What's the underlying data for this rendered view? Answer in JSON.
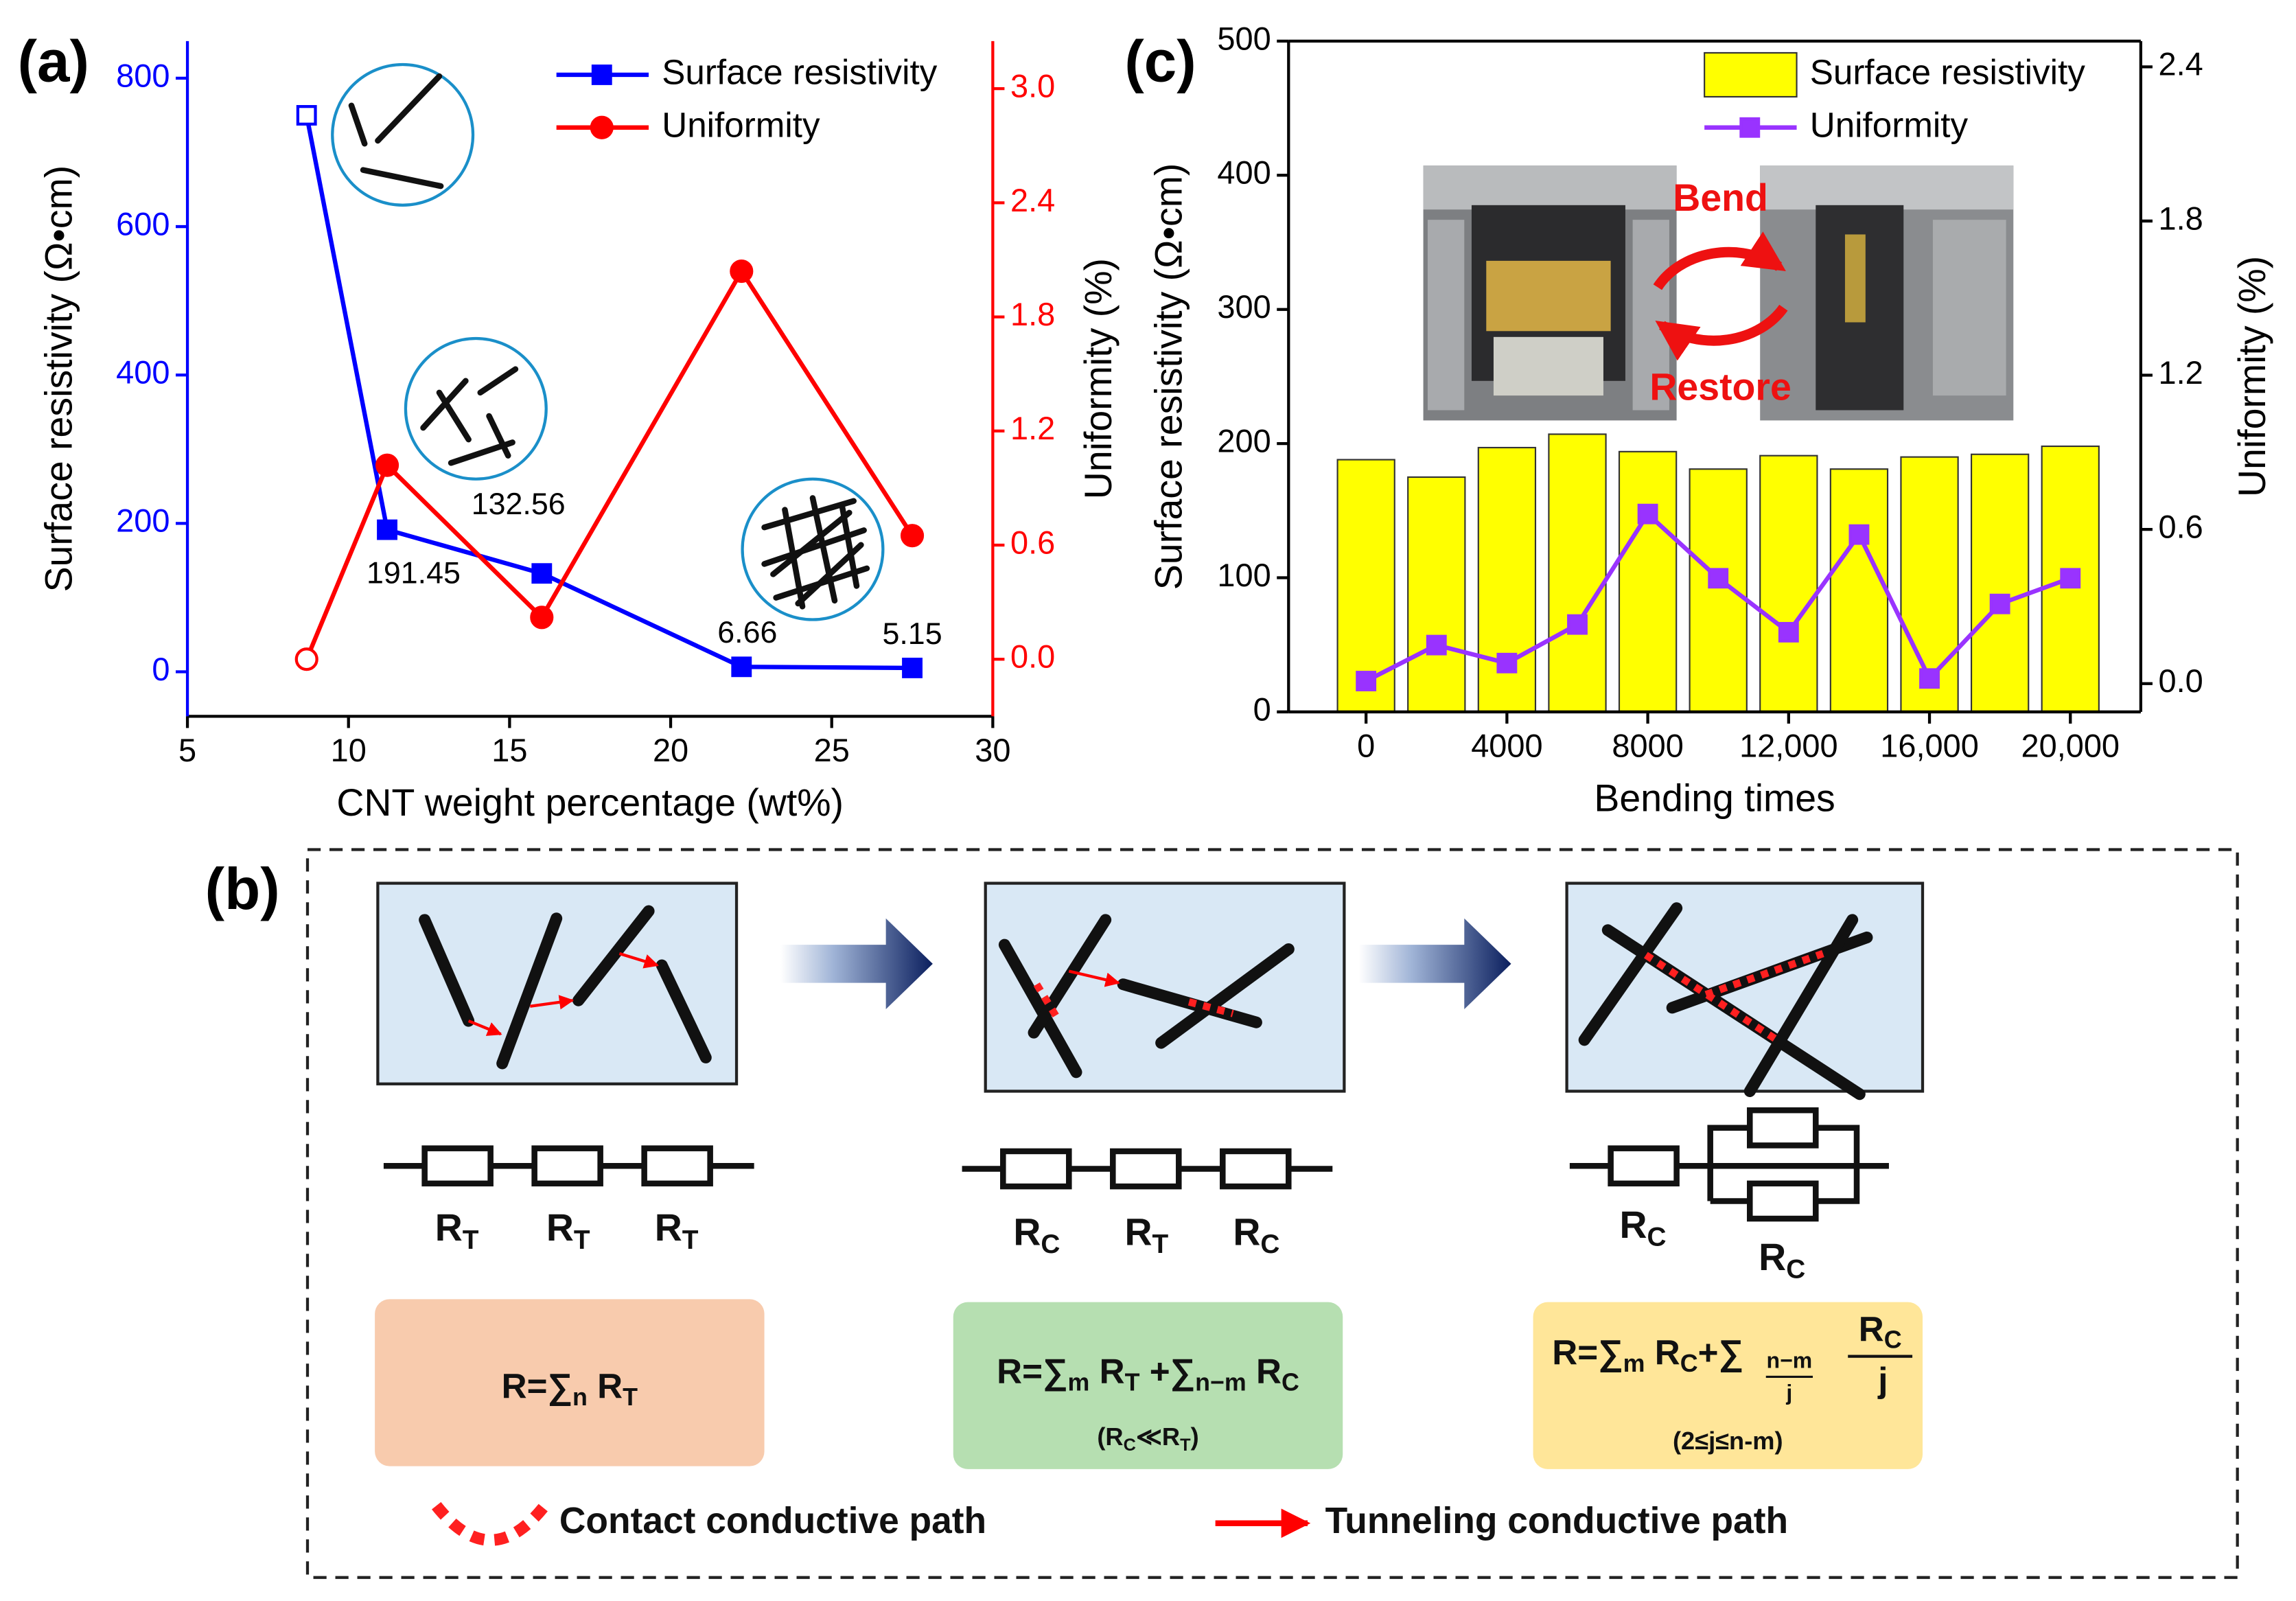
{
  "chart_data": [
    {
      "type": "line",
      "panel_label": "(a)",
      "xlabel": "CNT weight percentage (wt%)",
      "ylabel": "Surface resistivity (Ω•cm)",
      "y2label": "Uniformity (%)",
      "x": [
        8.7,
        11.2,
        16,
        22.2,
        27.5
      ],
      "series": [
        {
          "name": "Surface resistivity",
          "color": "#0000ff",
          "marker": "square",
          "hollow": [
            0
          ],
          "values": [
            750,
            191.45,
            132.56,
            6.66,
            5.15
          ],
          "value_labels": [
            null,
            "191.45",
            "132.56",
            "6.66",
            "5.15"
          ]
        },
        {
          "name": "Uniformity",
          "color": "#ff0000",
          "marker": "circle",
          "hollow": [
            0
          ],
          "axis": "y2",
          "values": [
            0,
            1.02,
            0.22,
            2.04,
            0.65
          ]
        }
      ],
      "xlim": [
        5,
        30
      ],
      "xticks": [
        5,
        10,
        15,
        20,
        25,
        30
      ],
      "ylim": [
        -60,
        850
      ],
      "yticks": [
        0,
        200,
        400,
        600,
        800
      ],
      "ycolor": "#0000ff",
      "y2lim": [
        -0.3,
        3.25
      ],
      "y2ticks": [
        {
          "value": 0,
          "label": "0.0"
        },
        {
          "value": 0.6,
          "label": "0.6"
        },
        {
          "value": 1.2,
          "label": "1.2"
        },
        {
          "value": 1.8,
          "label": "1.8"
        },
        {
          "value": 2.4,
          "label": "2.4"
        },
        {
          "value": 3,
          "label": "3.0"
        }
      ],
      "y2color": "#ff0000",
      "legend": "upper right"
    },
    {
      "type": "bar",
      "panel_label": "(c)",
      "xlabel": "Bending times",
      "ylabel": "Surface resistivity (Ω•cm)",
      "y2label": "Uniformity (%)",
      "x": [
        0,
        2000,
        4000,
        6000,
        8000,
        10000,
        12000,
        14000,
        16000,
        18000,
        20000
      ],
      "series": [
        {
          "name": "Surface resistivity",
          "type": "bar",
          "color": "#ffff00",
          "values": [
            188,
            175,
            197,
            207,
            194,
            181,
            191,
            181,
            190,
            192,
            198
          ]
        },
        {
          "name": "Uniformity",
          "type": "line",
          "color": "#9933ff",
          "marker": "square",
          "axis": "y2",
          "values": [
            0.01,
            0.15,
            0.08,
            0.23,
            0.66,
            0.41,
            0.2,
            0.58,
            0.02,
            0.31,
            0.41
          ]
        }
      ],
      "xlim": [
        -2200,
        22000
      ],
      "xticks": [
        0,
        4000,
        8000,
        {
          "value": 12000,
          "label": "12,000"
        },
        {
          "value": 16000,
          "label": "16,000"
        },
        {
          "value": 20000,
          "label": "20,000"
        }
      ],
      "ylim": [
        0,
        500
      ],
      "yticks": [
        0,
        100,
        200,
        300,
        400,
        500
      ],
      "y2lim": [
        -0.11,
        2.5
      ],
      "y2ticks": [
        {
          "value": 0,
          "label": "0.0"
        },
        {
          "value": 0.6,
          "label": "0.6"
        },
        {
          "value": 1.2,
          "label": "1.2"
        },
        {
          "value": 1.8,
          "label": "1.8"
        },
        {
          "value": 2.4,
          "label": "2.4"
        }
      ],
      "legend": "upper right",
      "inset_labels": [
        "Bend",
        "Restore"
      ]
    }
  ],
  "diagram": {
    "panel_label": "(b)",
    "stages": [
      {
        "resistors": [
          [
            "R",
            "T"
          ],
          [
            "R",
            "T"
          ],
          [
            "R",
            "T"
          ]
        ],
        "formula": [
          "R=∑",
          "n",
          " R",
          "T"
        ]
      },
      {
        "resistors": [
          [
            "R",
            "C"
          ],
          [
            "R",
            "T"
          ],
          [
            "R",
            "C"
          ]
        ],
        "formula": [
          "R=∑",
          "m",
          " R",
          "T",
          " +∑",
          "n−m",
          " R",
          "C"
        ],
        "condition": [
          "(R",
          "C",
          "≪R",
          "T",
          ")"
        ]
      },
      {
        "resistors": [
          [
            "R",
            "C"
          ],
          [
            "R",
            "C"
          ]
        ],
        "formula": [
          "R=∑",
          "m",
          " R",
          "C",
          "+∑"
        ],
        "sum_sub": {
          "num": "n−m",
          "den": "j"
        },
        "fraction": {
          "num": [
            "R",
            "C"
          ],
          "den": "j"
        },
        "condition": "(2≤j≤n-m)"
      }
    ],
    "legend": [
      "Contact conductive path",
      "Tunneling conductive path"
    ]
  }
}
